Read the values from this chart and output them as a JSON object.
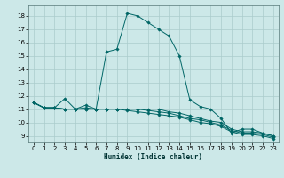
{
  "xlabel": "Humidex (Indice chaleur)",
  "background_color": "#cce8e8",
  "grid_color": "#aacccc",
  "line_color": "#006666",
  "xlim": [
    -0.5,
    23.5
  ],
  "ylim": [
    8.5,
    18.8
  ],
  "xticks": [
    0,
    1,
    2,
    3,
    4,
    5,
    6,
    7,
    8,
    9,
    10,
    11,
    12,
    13,
    14,
    15,
    16,
    17,
    18,
    19,
    20,
    21,
    22,
    23
  ],
  "yticks": [
    9,
    10,
    11,
    12,
    13,
    14,
    15,
    16,
    17,
    18
  ],
  "series": [
    [
      11.5,
      11.1,
      11.1,
      11.8,
      11.0,
      11.3,
      11.0,
      15.3,
      15.5,
      18.2,
      18.0,
      17.5,
      17.0,
      16.5,
      15.0,
      11.7,
      11.2,
      11.0,
      10.3,
      9.2,
      9.5,
      9.5,
      9.2,
      9.0
    ],
    [
      11.5,
      11.1,
      11.1,
      11.0,
      11.0,
      11.1,
      11.0,
      11.0,
      11.0,
      11.0,
      11.0,
      11.0,
      11.0,
      10.8,
      10.7,
      10.5,
      10.3,
      10.1,
      10.0,
      9.5,
      9.3,
      9.3,
      9.2,
      9.0
    ],
    [
      11.5,
      11.1,
      11.1,
      11.0,
      11.0,
      11.0,
      11.0,
      11.0,
      11.0,
      11.0,
      11.0,
      10.9,
      10.8,
      10.7,
      10.5,
      10.3,
      10.2,
      10.0,
      9.8,
      9.4,
      9.2,
      9.2,
      9.1,
      8.9
    ],
    [
      11.5,
      11.1,
      11.1,
      11.0,
      11.0,
      11.0,
      11.0,
      11.0,
      11.0,
      10.9,
      10.8,
      10.7,
      10.6,
      10.5,
      10.4,
      10.2,
      10.0,
      9.9,
      9.7,
      9.3,
      9.1,
      9.1,
      9.0,
      8.8
    ]
  ]
}
